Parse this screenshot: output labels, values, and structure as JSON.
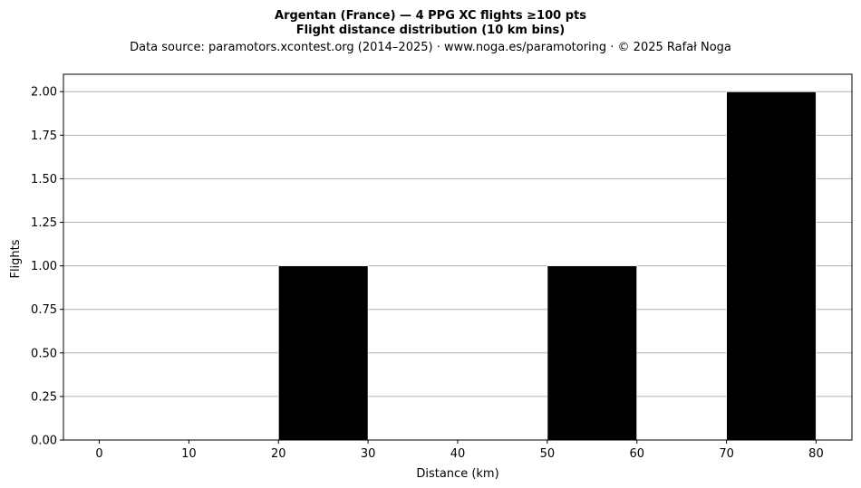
{
  "chart_data": {
    "type": "bar",
    "title": "Argentan (France)  —  4 PPG XC flights ≥100 pts",
    "subtitle": "Flight distance distribution (10 km bins)",
    "caption": "Data source: paramotors.xcontest.org (2014–2025)  ·  www.noga.es/paramotoring  ·  © 2025 Rafał Noga",
    "xlabel": "Distance (km)",
    "ylabel": "Flights",
    "bins": [
      {
        "start": 20,
        "end": 30,
        "count": 1
      },
      {
        "start": 50,
        "end": 60,
        "count": 1
      },
      {
        "start": 70,
        "end": 80,
        "count": 2
      }
    ],
    "xlim": [
      -4,
      84
    ],
    "ylim": [
      0,
      2.1
    ],
    "xticks": [
      "0",
      "10",
      "20",
      "30",
      "40",
      "50",
      "60",
      "70",
      "80"
    ],
    "yticks": [
      "0.00",
      "0.25",
      "0.50",
      "0.75",
      "1.00",
      "1.25",
      "1.50",
      "1.75",
      "2.00"
    ],
    "grid": "y",
    "bar_color": "#000000",
    "grid_color": "#b0b0b0"
  }
}
